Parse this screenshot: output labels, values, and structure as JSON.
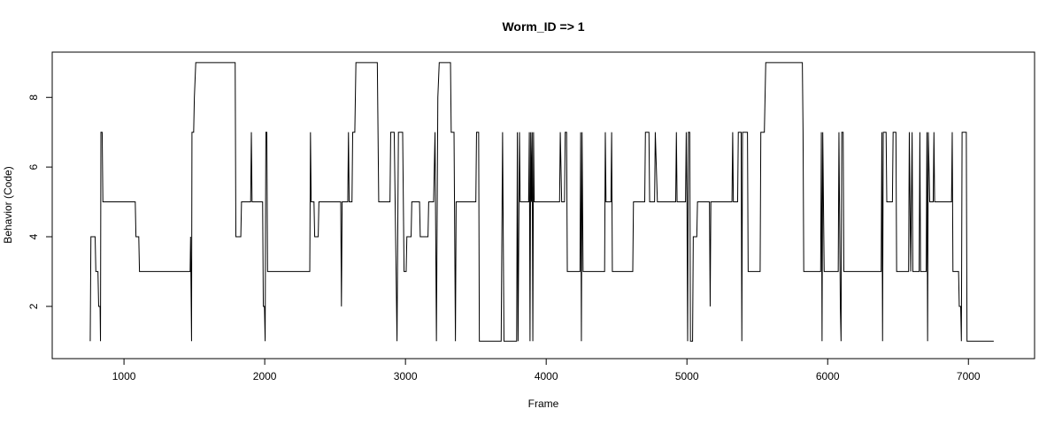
{
  "chart_data": {
    "type": "line",
    "title": "Worm_ID => 1",
    "xlabel": "Frame",
    "ylabel": "Behavior (Code)",
    "xlim": [
      490,
      7470
    ],
    "ylim": [
      0.5,
      9.3
    ],
    "xticks": [
      1000,
      2000,
      3000,
      4000,
      5000,
      6000,
      7000
    ],
    "yticks": [
      2,
      4,
      6,
      8
    ],
    "grid": false,
    "series": [
      {
        "name": "",
        "color": "#000000",
        "points": [
          [
            760,
            1
          ],
          [
            765,
            4
          ],
          [
            795,
            4
          ],
          [
            800,
            3
          ],
          [
            815,
            3
          ],
          [
            820,
            2
          ],
          [
            830,
            2
          ],
          [
            833,
            1
          ],
          [
            836,
            7
          ],
          [
            845,
            7
          ],
          [
            850,
            5
          ],
          [
            1080,
            5
          ],
          [
            1085,
            4
          ],
          [
            1105,
            4
          ],
          [
            1110,
            3
          ],
          [
            1470,
            3
          ],
          [
            1473,
            4
          ],
          [
            1480,
            1
          ],
          [
            1483,
            7
          ],
          [
            1495,
            7
          ],
          [
            1500,
            8
          ],
          [
            1510,
            9
          ],
          [
            1790,
            9
          ],
          [
            1795,
            4
          ],
          [
            1830,
            4
          ],
          [
            1835,
            5
          ],
          [
            1900,
            5
          ],
          [
            1905,
            7
          ],
          [
            1910,
            5
          ],
          [
            1985,
            5
          ],
          [
            1990,
            2
          ],
          [
            1998,
            2
          ],
          [
            2003,
            1
          ],
          [
            2008,
            7
          ],
          [
            2015,
            7
          ],
          [
            2020,
            3
          ],
          [
            2320,
            3
          ],
          [
            2325,
            7
          ],
          [
            2330,
            5
          ],
          [
            2350,
            5
          ],
          [
            2355,
            4
          ],
          [
            2380,
            4
          ],
          [
            2385,
            5
          ],
          [
            2540,
            5
          ],
          [
            2545,
            2
          ],
          [
            2550,
            5
          ],
          [
            2590,
            5
          ],
          [
            2595,
            7
          ],
          [
            2600,
            5
          ],
          [
            2620,
            5
          ],
          [
            2625,
            7
          ],
          [
            2640,
            7
          ],
          [
            2648,
            9
          ],
          [
            2800,
            9
          ],
          [
            2810,
            5
          ],
          [
            2890,
            5
          ],
          [
            2895,
            7
          ],
          [
            2920,
            7
          ],
          [
            2940,
            1
          ],
          [
            2950,
            7
          ],
          [
            2980,
            7
          ],
          [
            2990,
            3
          ],
          [
            3005,
            3
          ],
          [
            3010,
            4
          ],
          [
            3040,
            4
          ],
          [
            3045,
            5
          ],
          [
            3100,
            5
          ],
          [
            3105,
            4
          ],
          [
            3160,
            4
          ],
          [
            3165,
            5
          ],
          [
            3200,
            5
          ],
          [
            3210,
            7
          ],
          [
            3220,
            1
          ],
          [
            3230,
            8
          ],
          [
            3240,
            9
          ],
          [
            3320,
            9
          ],
          [
            3325,
            7
          ],
          [
            3345,
            7
          ],
          [
            3355,
            1
          ],
          [
            3360,
            5
          ],
          [
            3500,
            5
          ],
          [
            3505,
            7
          ],
          [
            3520,
            7
          ],
          [
            3525,
            1
          ],
          [
            3680,
            1
          ],
          [
            3690,
            7
          ],
          [
            3700,
            1
          ],
          [
            3790,
            1
          ],
          [
            3795,
            7
          ],
          [
            3800,
            1
          ],
          [
            3810,
            7
          ],
          [
            3815,
            5
          ],
          [
            3875,
            5
          ],
          [
            3880,
            7
          ],
          [
            3885,
            1
          ],
          [
            3890,
            7
          ],
          [
            3895,
            5
          ],
          [
            3900,
            7
          ],
          [
            3905,
            1
          ],
          [
            3910,
            7
          ],
          [
            3915,
            5
          ],
          [
            4095,
            5
          ],
          [
            4100,
            7
          ],
          [
            4110,
            5
          ],
          [
            4130,
            5
          ],
          [
            4135,
            7
          ],
          [
            4145,
            7
          ],
          [
            4150,
            3
          ],
          [
            4240,
            3
          ],
          [
            4245,
            7
          ],
          [
            4250,
            1
          ],
          [
            4255,
            7
          ],
          [
            4262,
            3
          ],
          [
            4415,
            3
          ],
          [
            4420,
            7
          ],
          [
            4425,
            5
          ],
          [
            4460,
            5
          ],
          [
            4465,
            7
          ],
          [
            4470,
            3
          ],
          [
            4615,
            3
          ],
          [
            4620,
            5
          ],
          [
            4700,
            5
          ],
          [
            4705,
            7
          ],
          [
            4730,
            7
          ],
          [
            4735,
            5
          ],
          [
            4770,
            5
          ],
          [
            4775,
            7
          ],
          [
            4790,
            5
          ],
          [
            4920,
            5
          ],
          [
            4925,
            7
          ],
          [
            4930,
            5
          ],
          [
            4990,
            5
          ],
          [
            4995,
            7
          ],
          [
            5000,
            5
          ],
          [
            5005,
            1
          ],
          [
            5010,
            7
          ],
          [
            5020,
            7
          ],
          [
            5025,
            1
          ],
          [
            5040,
            1
          ],
          [
            5045,
            4
          ],
          [
            5070,
            4
          ],
          [
            5075,
            5
          ],
          [
            5160,
            5
          ],
          [
            5165,
            2
          ],
          [
            5170,
            5
          ],
          [
            5320,
            5
          ],
          [
            5325,
            7
          ],
          [
            5330,
            5
          ],
          [
            5360,
            5
          ],
          [
            5365,
            7
          ],
          [
            5385,
            7
          ],
          [
            5390,
            1
          ],
          [
            5395,
            7
          ],
          [
            5430,
            7
          ],
          [
            5435,
            3
          ],
          [
            5520,
            3
          ],
          [
            5525,
            7
          ],
          [
            5550,
            7
          ],
          [
            5560,
            9
          ],
          [
            5820,
            9
          ],
          [
            5825,
            7
          ],
          [
            5830,
            3
          ],
          [
            5950,
            3
          ],
          [
            5955,
            7
          ],
          [
            5960,
            1
          ],
          [
            5965,
            7
          ],
          [
            5975,
            3
          ],
          [
            6075,
            3
          ],
          [
            6080,
            7
          ],
          [
            6090,
            2
          ],
          [
            6095,
            1
          ],
          [
            6100,
            7
          ],
          [
            6110,
            7
          ],
          [
            6115,
            3
          ],
          [
            6380,
            3
          ],
          [
            6385,
            7
          ],
          [
            6390,
            1
          ],
          [
            6395,
            7
          ],
          [
            6415,
            7
          ],
          [
            6420,
            5
          ],
          [
            6460,
            5
          ],
          [
            6465,
            7
          ],
          [
            6485,
            7
          ],
          [
            6490,
            3
          ],
          [
            6575,
            3
          ],
          [
            6580,
            7
          ],
          [
            6590,
            3
          ],
          [
            6600,
            7
          ],
          [
            6605,
            3
          ],
          [
            6650,
            3
          ],
          [
            6655,
            7
          ],
          [
            6660,
            3
          ],
          [
            6700,
            3
          ],
          [
            6705,
            7
          ],
          [
            6710,
            1
          ],
          [
            6715,
            7
          ],
          [
            6725,
            5
          ],
          [
            6750,
            5
          ],
          [
            6755,
            7
          ],
          [
            6760,
            5
          ],
          [
            6880,
            5
          ],
          [
            6885,
            7
          ],
          [
            6890,
            3
          ],
          [
            6930,
            3
          ],
          [
            6935,
            2
          ],
          [
            6945,
            2
          ],
          [
            6950,
            1
          ],
          [
            6955,
            7
          ],
          [
            6985,
            7
          ],
          [
            6990,
            1
          ],
          [
            7180,
            1
          ]
        ]
      }
    ]
  }
}
